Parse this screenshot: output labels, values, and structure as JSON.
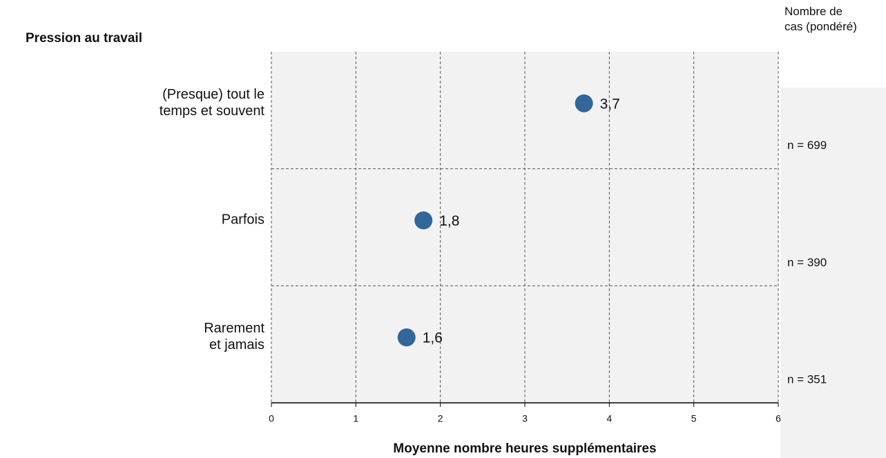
{
  "chart_data": {
    "type": "dot",
    "title": "Pression au travail",
    "xlabel": "Moyenne nombre heures supplémentaires",
    "side_header": "Nombre de\ncas (pondéré)",
    "categories": [
      "(Presque) tout le\ntemps et souvent",
      "Parfois",
      "Rarement\net jamais"
    ],
    "values": [
      3.7,
      1.8,
      1.6
    ],
    "value_labels": [
      "3,7",
      "1,8",
      "1,6"
    ],
    "n_labels": [
      "n = 699",
      "n = 390",
      "n = 351"
    ],
    "color": "#336699",
    "xlim": [
      0,
      6
    ],
    "xticks": [
      0,
      1,
      2,
      3,
      4,
      5,
      6
    ],
    "grid": true
  }
}
